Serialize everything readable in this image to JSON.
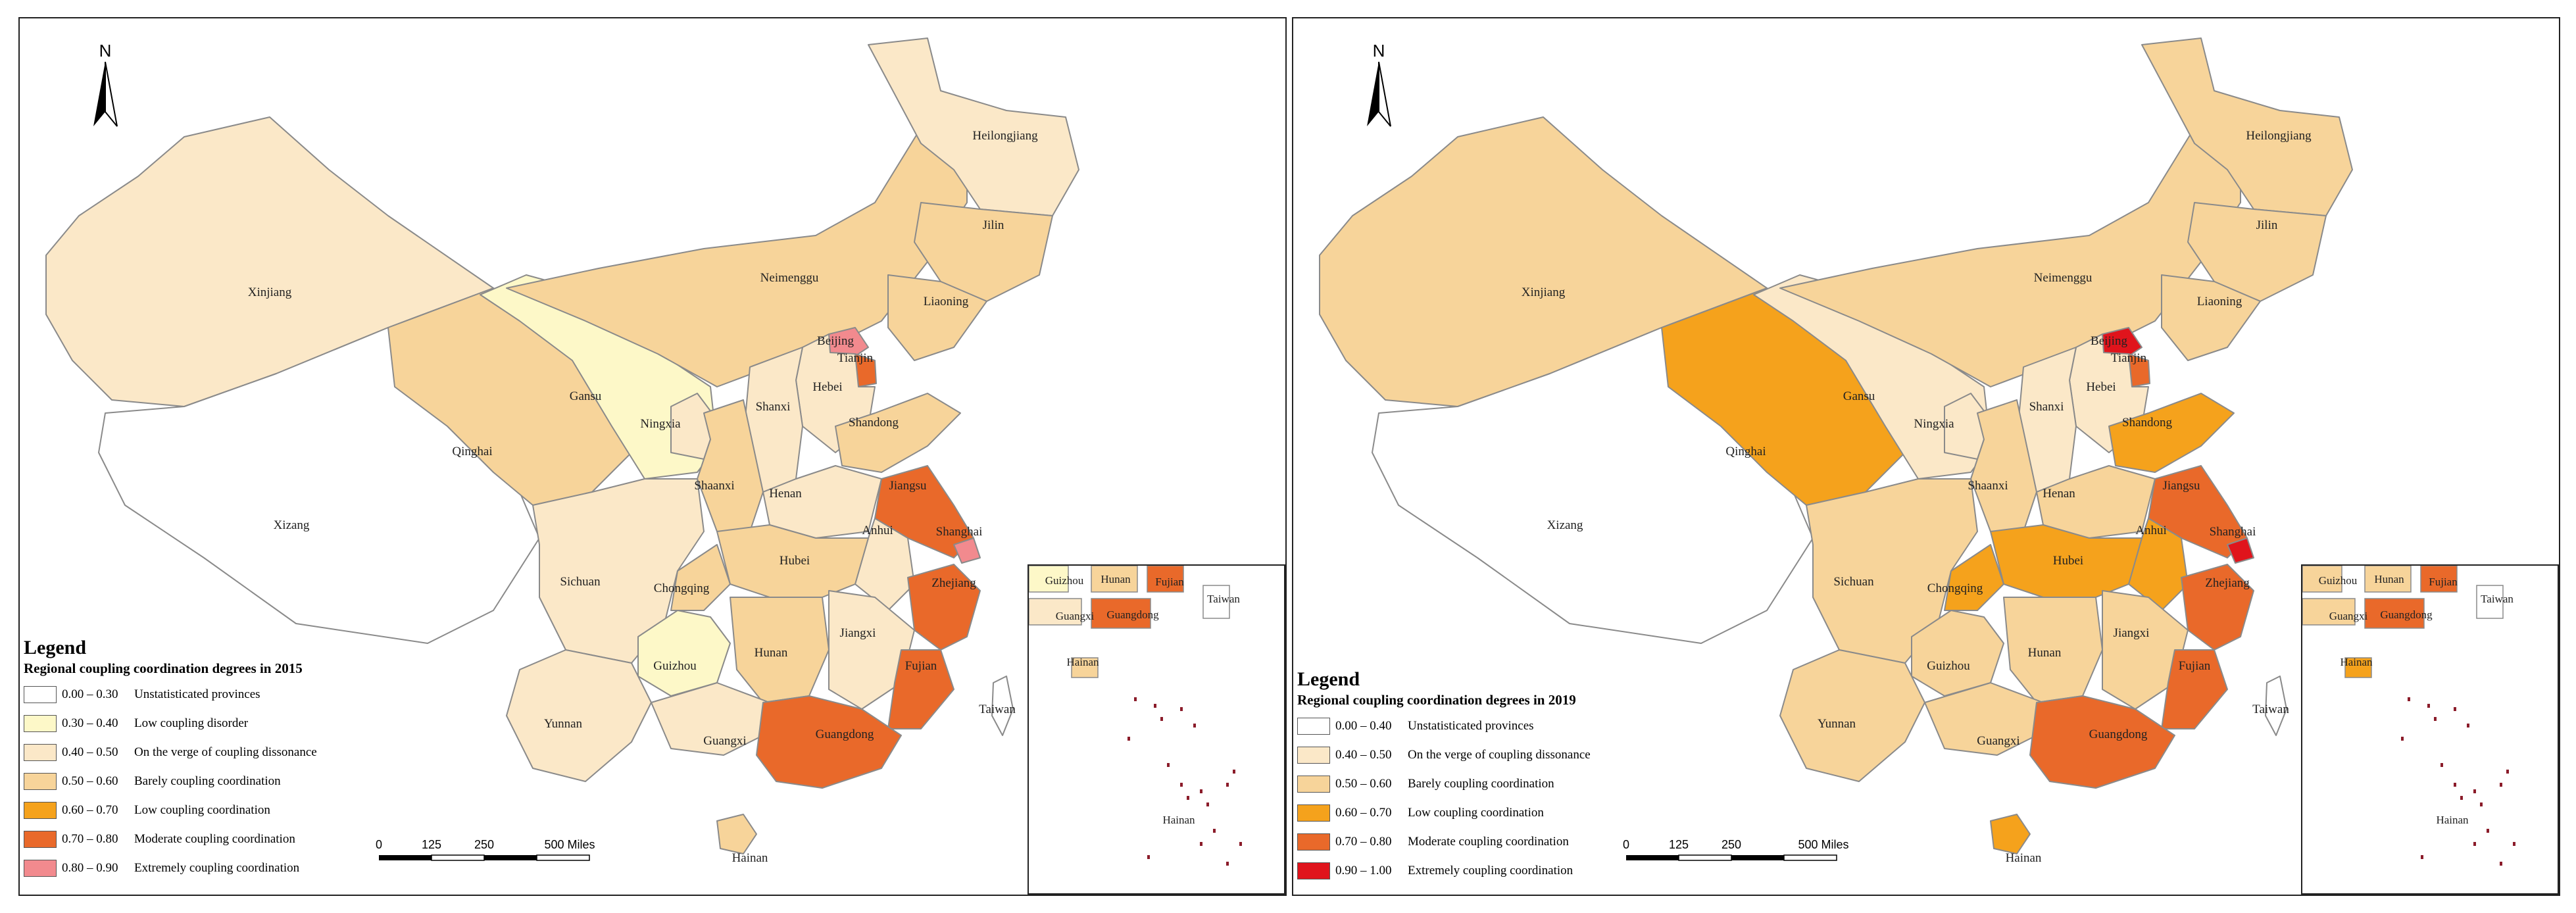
{
  "panels": [
    {
      "north_label": "N",
      "legend": {
        "title": "Legend",
        "subtitle": "Regional coupling coordination degrees in 2015",
        "items": [
          {
            "range": "0.00 – 0.30",
            "label": "Unstatisticated provinces",
            "color": "#ffffff"
          },
          {
            "range": "0.30 – 0.40",
            "label": "Low coupling disorder",
            "color": "#fdf8c8"
          },
          {
            "range": "0.40 – 0.50",
            "label": "On the verge of coupling dissonance",
            "color": "#fbe8c8"
          },
          {
            "range": "0.50 – 0.60",
            "label": "Barely coupling coordination",
            "color": "#f7d49a"
          },
          {
            "range": "0.60 – 0.70",
            "label": "Low coupling coordination",
            "color": "#f5a21c"
          },
          {
            "range": "0.70 – 0.80",
            "label": "Moderate coupling coordination",
            "color": "#e9692a"
          },
          {
            "range": "0.80 – 0.90",
            "label": "Extremely coupling coordination",
            "color": "#f28a8e"
          }
        ]
      },
      "scalebar": {
        "ticks": [
          "0",
          "125",
          "250",
          "500 Miles"
        ]
      },
      "provinces": [
        {
          "name": "Xinjiang",
          "color": "#fbe8c8"
        },
        {
          "name": "Xizang",
          "color": "#ffffff"
        },
        {
          "name": "Qinghai",
          "color": "#f7d49a"
        },
        {
          "name": "Gansu",
          "color": "#fdf8c8"
        },
        {
          "name": "Ningxia",
          "color": "#fbe8c8"
        },
        {
          "name": "Neimenggu",
          "color": "#f7d49a"
        },
        {
          "name": "Heilongjiang",
          "color": "#fbe8c8"
        },
        {
          "name": "Jilin",
          "color": "#f7d49a"
        },
        {
          "name": "Liaoning",
          "color": "#f7d49a"
        },
        {
          "name": "Beijing",
          "color": "#f28a8e"
        },
        {
          "name": "Tianjin",
          "color": "#e9692a"
        },
        {
          "name": "Hebei",
          "color": "#fbe8c8"
        },
        {
          "name": "Shanxi",
          "color": "#fbe8c8"
        },
        {
          "name": "Shandong",
          "color": "#f7d49a"
        },
        {
          "name": "Shaanxi",
          "color": "#f7d49a"
        },
        {
          "name": "Henan",
          "color": "#fbe8c8"
        },
        {
          "name": "Jiangsu",
          "color": "#e9692a"
        },
        {
          "name": "Anhui",
          "color": "#fbe8c8"
        },
        {
          "name": "Shanghai",
          "color": "#f28a8e"
        },
        {
          "name": "Sichuan",
          "color": "#fbe8c8"
        },
        {
          "name": "Chongqing",
          "color": "#f7d49a"
        },
        {
          "name": "Hubei",
          "color": "#f7d49a"
        },
        {
          "name": "Zhejiang",
          "color": "#e9692a"
        },
        {
          "name": "Guizhou",
          "color": "#fdf8c8"
        },
        {
          "name": "Hunan",
          "color": "#f7d49a"
        },
        {
          "name": "Jiangxi",
          "color": "#fbe8c8"
        },
        {
          "name": "Fujian",
          "color": "#e9692a"
        },
        {
          "name": "Yunnan",
          "color": "#fbe8c8"
        },
        {
          "name": "Guangxi",
          "color": "#fbe8c8"
        },
        {
          "name": "Guangdong",
          "color": "#e9692a"
        },
        {
          "name": "Hainan",
          "color": "#f7d49a"
        },
        {
          "name": "Taiwan",
          "color": "#ffffff"
        }
      ],
      "inset": {
        "labels": [
          "Guizhou",
          "Hunan",
          "Fujian",
          "Taiwan",
          "Guangxi",
          "Guangdong",
          "Hainan",
          "Hainan"
        ],
        "colors": {
          "Guizhou": "#fdf8c8",
          "Hunan": "#f7d49a",
          "Fujian": "#e9692a",
          "Taiwan": "#ffffff",
          "Guangxi": "#fbe8c8",
          "Guangdong": "#e9692a",
          "Hainan": "#f7d49a"
        }
      }
    },
    {
      "north_label": "N",
      "legend": {
        "title": "Legend",
        "subtitle": "Regional coupling coordination degrees in 2019",
        "items": [
          {
            "range": "0.00 – 0.40",
            "label": "Unstatisticated provinces",
            "color": "#ffffff"
          },
          {
            "range": "0.40 – 0.50",
            "label": "On the verge of coupling dissonance",
            "color": "#fbe8c8"
          },
          {
            "range": "0.50 – 0.60",
            "label": "Barely coupling coordination",
            "color": "#f7d49a"
          },
          {
            "range": "0.60 – 0.70",
            "label": "Low coupling coordination",
            "color": "#f5a21c"
          },
          {
            "range": "0.70 – 0.80",
            "label": "Moderate coupling coordination",
            "color": "#e9692a"
          },
          {
            "range": "0.90 – 1.00",
            "label": "Extremely coupling coordination",
            "color": "#e0141c"
          }
        ]
      },
      "scalebar": {
        "ticks": [
          "0",
          "125",
          "250",
          "500 Miles"
        ]
      },
      "provinces": [
        {
          "name": "Xinjiang",
          "color": "#f7d49a"
        },
        {
          "name": "Xizang",
          "color": "#ffffff"
        },
        {
          "name": "Qinghai",
          "color": "#f5a21c"
        },
        {
          "name": "Gansu",
          "color": "#fbe8c8"
        },
        {
          "name": "Ningxia",
          "color": "#fbe8c8"
        },
        {
          "name": "Neimenggu",
          "color": "#f7d49a"
        },
        {
          "name": "Heilongjiang",
          "color": "#f7d49a"
        },
        {
          "name": "Jilin",
          "color": "#f7d49a"
        },
        {
          "name": "Liaoning",
          "color": "#f7d49a"
        },
        {
          "name": "Beijing",
          "color": "#e0141c"
        },
        {
          "name": "Tianjin",
          "color": "#e9692a"
        },
        {
          "name": "Hebei",
          "color": "#fbe8c8"
        },
        {
          "name": "Shanxi",
          "color": "#fbe8c8"
        },
        {
          "name": "Shandong",
          "color": "#f5a21c"
        },
        {
          "name": "Shaanxi",
          "color": "#f7d49a"
        },
        {
          "name": "Henan",
          "color": "#f7d49a"
        },
        {
          "name": "Jiangsu",
          "color": "#e9692a"
        },
        {
          "name": "Anhui",
          "color": "#f5a21c"
        },
        {
          "name": "Shanghai",
          "color": "#e0141c"
        },
        {
          "name": "Sichuan",
          "color": "#f7d49a"
        },
        {
          "name": "Chongqing",
          "color": "#f5a21c"
        },
        {
          "name": "Hubei",
          "color": "#f5a21c"
        },
        {
          "name": "Zhejiang",
          "color": "#e9692a"
        },
        {
          "name": "Guizhou",
          "color": "#f7d49a"
        },
        {
          "name": "Hunan",
          "color": "#f7d49a"
        },
        {
          "name": "Jiangxi",
          "color": "#f7d49a"
        },
        {
          "name": "Fujian",
          "color": "#e9692a"
        },
        {
          "name": "Yunnan",
          "color": "#f7d49a"
        },
        {
          "name": "Guangxi",
          "color": "#f7d49a"
        },
        {
          "name": "Guangdong",
          "color": "#e9692a"
        },
        {
          "name": "Hainan",
          "color": "#f5a21c"
        },
        {
          "name": "Taiwan",
          "color": "#ffffff"
        }
      ],
      "inset": {
        "labels": [
          "Guizhou",
          "Hunan",
          "Fujian",
          "Taiwan",
          "Guangxi",
          "Guangdong",
          "Hainan",
          "Hainan"
        ],
        "colors": {
          "Guizhou": "#f7d49a",
          "Hunan": "#f7d49a",
          "Fujian": "#e9692a",
          "Taiwan": "#ffffff",
          "Guangxi": "#f7d49a",
          "Guangdong": "#e9692a",
          "Hainan": "#f5a21c"
        }
      }
    }
  ]
}
